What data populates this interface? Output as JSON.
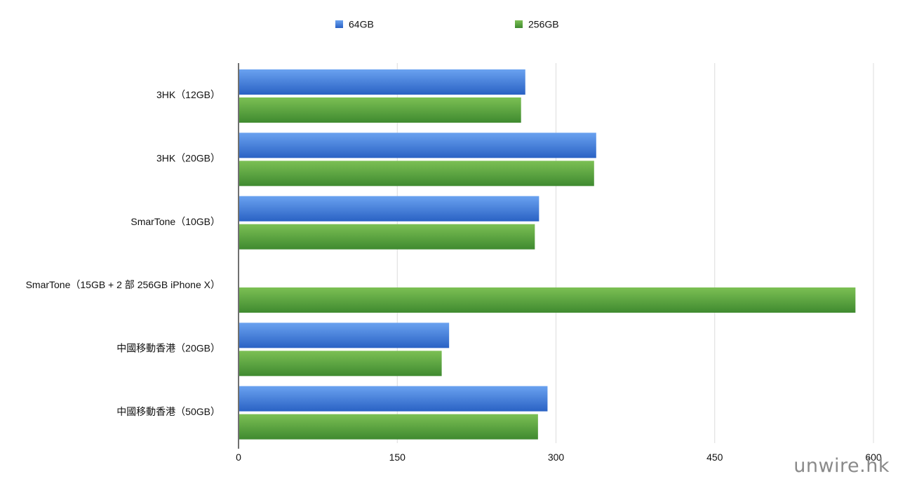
{
  "chart_data": {
    "type": "bar",
    "orientation": "horizontal",
    "categories": [
      "3HK（12GB）",
      "3HK（20GB）",
      "SmarTone（10GB）",
      "SmarTone（15GB + 2 部 256GB iPhone X）",
      "中國移動香港（20GB）",
      "中國移動香港（50GB）"
    ],
    "series": [
      {
        "name": "64GB",
        "color": "#3b78d8",
        "values": [
          271,
          338,
          284,
          null,
          199,
          292
        ]
      },
      {
        "name": "256GB",
        "color": "#4f9e3a",
        "values": [
          267,
          336,
          280,
          583,
          192,
          283
        ]
      }
    ],
    "xlim": [
      0,
      600
    ],
    "xticks": [
      "0",
      "150",
      "300",
      "450",
      "600"
    ],
    "grid": true,
    "legend_placement": "top-center"
  },
  "watermark": "unwire.hk"
}
